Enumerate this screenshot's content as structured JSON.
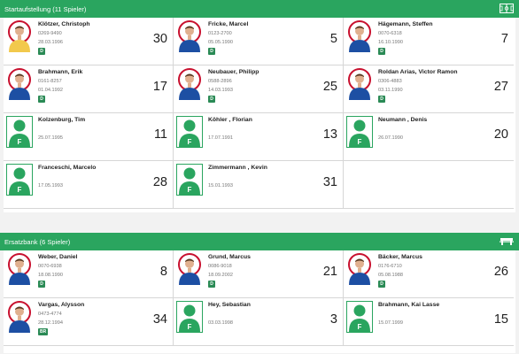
{
  "starting": {
    "title": "Startaufstellung (11 Spieler)",
    "icon": "formation-icon",
    "players": [
      {
        "name": "Klötzer, Christoph",
        "line1": "0269-9490",
        "line2": "28.03.1996",
        "badge": "D",
        "number": "30",
        "photo": true,
        "keeper": true
      },
      {
        "name": "Fricke, Marcel",
        "line1": "0123-2700",
        "line2": "05.05.1990",
        "badge": "D",
        "number": "5",
        "photo": true
      },
      {
        "name": "Hägemann, Steffen",
        "line1": "0070-6318",
        "line2": "16.10.1990",
        "badge": "D",
        "number": "7",
        "photo": true
      },
      {
        "name": "Brahmann, Erik",
        "line1": "0161-8257",
        "line2": "01.04.1992",
        "badge": "D",
        "number": "17",
        "photo": true
      },
      {
        "name": "Neubauer, Philipp",
        "line1": "0588-2896",
        "line2": "14.03.1993",
        "badge": "D",
        "number": "25",
        "photo": true
      },
      {
        "name": "Roldan Arias, Victor Ramon",
        "line1": "0306-4883",
        "line2": "03.11.1990",
        "badge": "D",
        "number": "27",
        "photo": true
      },
      {
        "name": "Kolzenburg, Tim",
        "line1": "",
        "line2": "25.07.1995",
        "badge": "",
        "number": "11",
        "photo": false
      },
      {
        "name": "Köhler , Florian",
        "line1": "",
        "line2": "17.07.1991",
        "badge": "",
        "number": "13",
        "photo": false
      },
      {
        "name": "Neumann , Denis",
        "line1": "",
        "line2": "26.07.1990",
        "badge": "",
        "number": "20",
        "photo": false
      },
      {
        "name": "Franceschi, Marcelo",
        "line1": "",
        "line2": "17.05.1993",
        "badge": "",
        "number": "28",
        "photo": false
      },
      {
        "name": "Zimmermann , Kevin",
        "line1": "",
        "line2": "15.01.1993",
        "badge": "",
        "number": "31",
        "photo": false
      }
    ]
  },
  "bench": {
    "title": "Ersatzbank (6 Spieler)",
    "icon": "bench-icon",
    "players": [
      {
        "name": "Weber, Daniel",
        "line1": "0070-6938",
        "line2": "18.08.1990",
        "badge": "D",
        "number": "8",
        "photo": true
      },
      {
        "name": "Grund, Marcus",
        "line1": "0086-9018",
        "line2": "18.09.2002",
        "badge": "D",
        "number": "21",
        "photo": true
      },
      {
        "name": "Bäcker, Marcus",
        "line1": "0176-6710",
        "line2": "05.08.1988",
        "badge": "D",
        "number": "26",
        "photo": true
      },
      {
        "name": "Vargas, Alysson",
        "line1": "0473-4774",
        "line2": "28.12.1994",
        "badge": "BR",
        "number": "34",
        "photo": true
      },
      {
        "name": "Hey, Sebastian",
        "line1": "",
        "line2": "03.03.1998",
        "badge": "",
        "number": "3",
        "photo": false
      },
      {
        "name": "Brahmann, Kai Lasse",
        "line1": "",
        "line2": "15.07.1999",
        "badge": "",
        "number": "15",
        "photo": false
      }
    ]
  },
  "colors": {
    "header": "#2aa55f",
    "badge": "#2a8a55",
    "placeholder": "#2aa55f",
    "photo_ring": "#c8102e"
  }
}
